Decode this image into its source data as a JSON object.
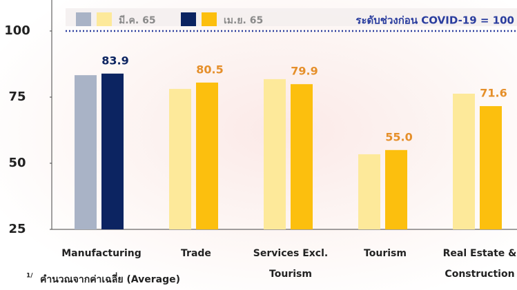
{
  "chart_data": {
    "type": "bar",
    "categories": [
      "Manufacturing",
      "Trade",
      [
        "Services Excl.",
        "Tourism"
      ],
      "Tourism",
      [
        "Real Estate &",
        "Construction"
      ]
    ],
    "series": [
      {
        "name": "มี.ค. 65",
        "colors": [
          "#a9b3c6",
          "#fde99a",
          "#fde99a",
          "#fde99a",
          "#fde99a"
        ],
        "values": [
          83.3,
          78.1,
          81.8,
          53.4,
          76.3
        ]
      },
      {
        "name": "เม.ย. 65",
        "colors": [
          "#0c2461",
          "#fcbf0e",
          "#fcbf0e",
          "#fcbf0e",
          "#fcbf0e"
        ],
        "values": [
          83.9,
          80.5,
          79.9,
          55.0,
          71.6
        ],
        "value_labels": [
          "83.9",
          "80.5",
          "79.9",
          "55.0",
          "71.6"
        ],
        "label_colors": [
          "#0c2461",
          "#e58f2a",
          "#e58f2a",
          "#e58f2a",
          "#e58f2a"
        ]
      }
    ],
    "ylim": [
      25,
      100
    ],
    "yticks": [
      25,
      50,
      75,
      100
    ],
    "reference_line": {
      "value": 100,
      "label": "ระดับช่วงก่อน COVID-19 = 100",
      "color": "#2a3d9e"
    },
    "footnote": {
      "marker": "1/",
      "text": "คำนวณจากค่าเฉลี่ย (Average)"
    }
  }
}
